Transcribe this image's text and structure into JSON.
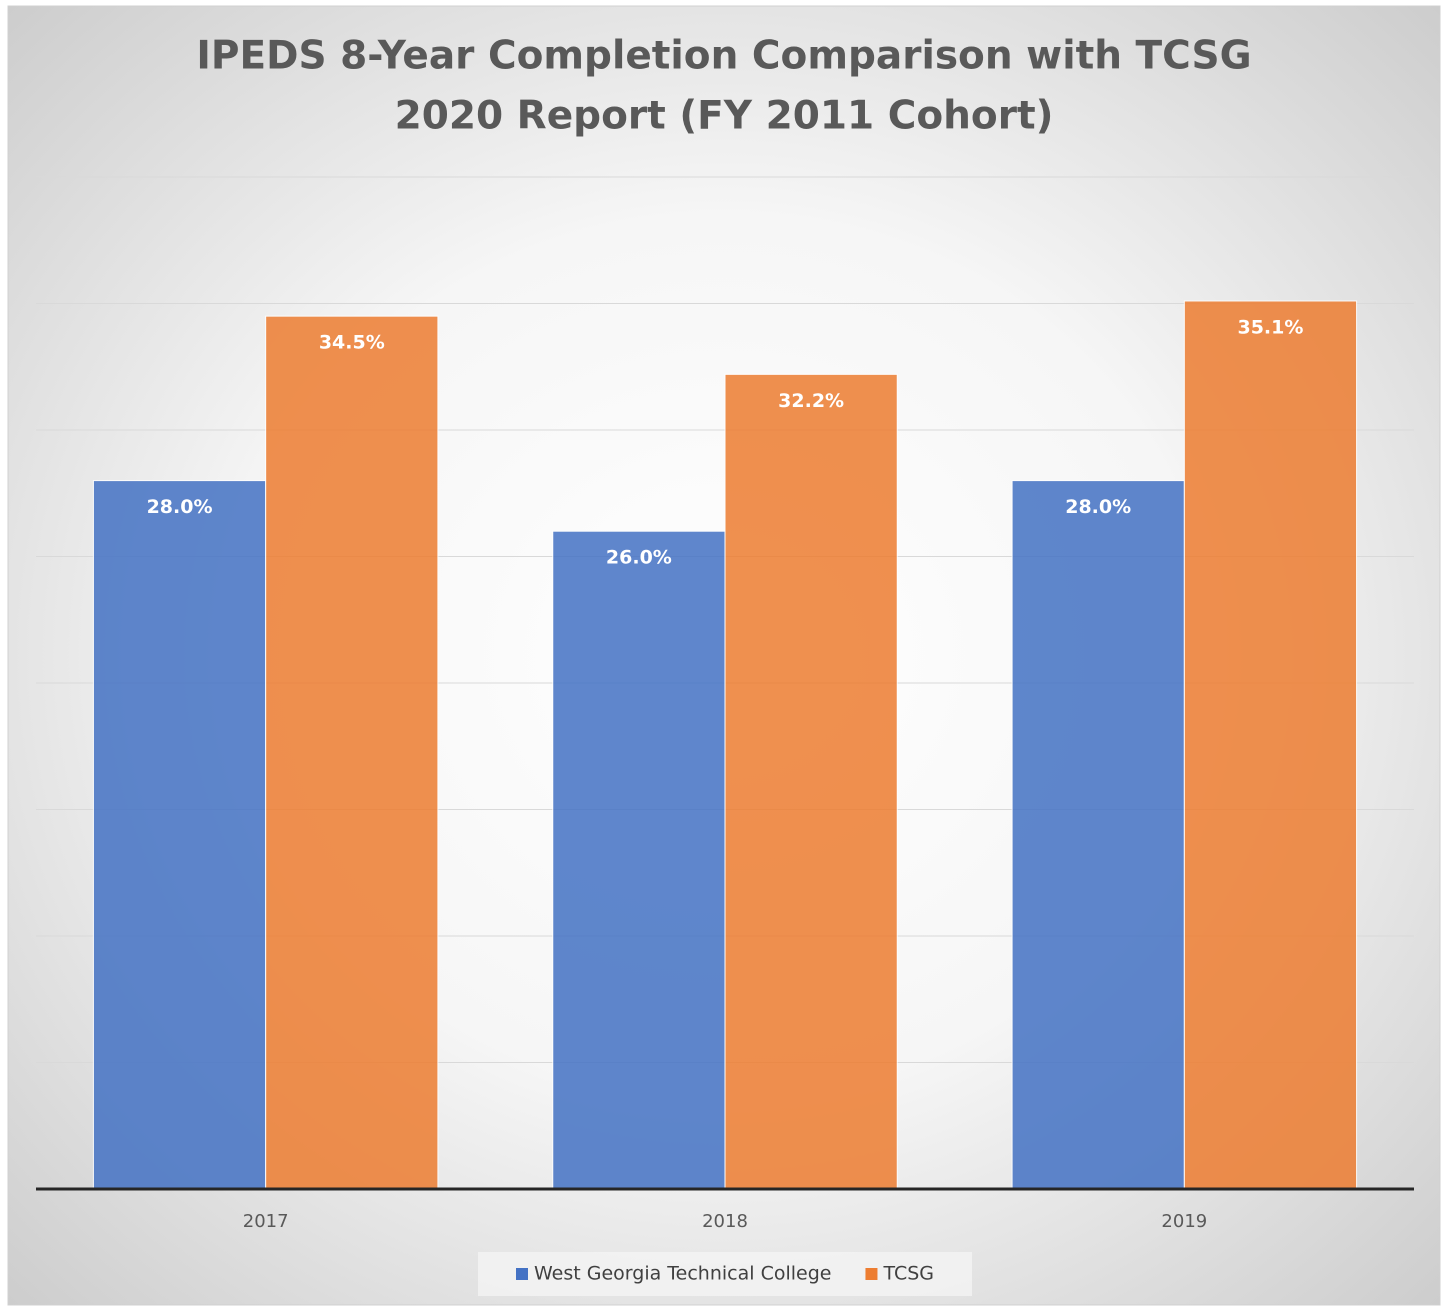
{
  "chart_data": {
    "type": "bar",
    "title": [
      "IPEDS 8-Year Completion Comparison with TCSG",
      "2020 Report (FY 2011 Cohort)"
    ],
    "categories": [
      "2017",
      "2018",
      "2019"
    ],
    "series": [
      {
        "name": "West Georgia Technical College",
        "color": "#4472c4",
        "values": [
          28.0,
          26.0,
          28.0
        ],
        "value_labels": [
          "28.0%",
          "26.0%",
          "28.0%"
        ]
      },
      {
        "name": "TCSG",
        "color": "#ed7d31",
        "values": [
          34.5,
          32.2,
          35.1
        ],
        "value_labels": [
          "34.5%",
          "32.2%",
          "35.1%"
        ]
      }
    ],
    "ylim": [
      0,
      40
    ],
    "yticks": [
      0,
      5,
      10,
      15,
      20,
      25,
      30,
      35,
      40
    ],
    "grid": true,
    "legend": "bottom"
  }
}
